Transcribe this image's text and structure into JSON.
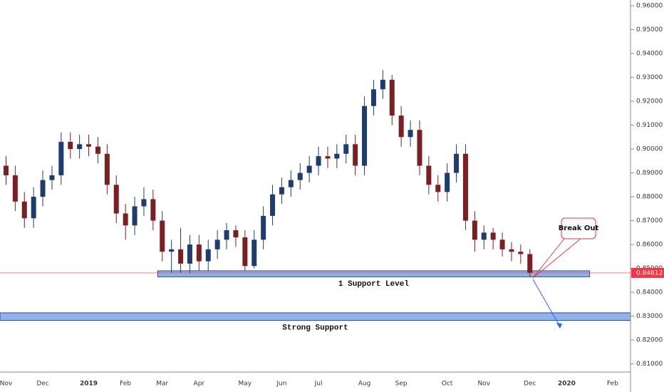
{
  "chart_data": {
    "type": "candlestick",
    "categories": [
      "Nov",
      null,
      null,
      null,
      "Dec",
      null,
      null,
      null,
      null,
      "2019",
      null,
      null,
      null,
      "Feb",
      null,
      null,
      null,
      "Mar",
      null,
      null,
      null,
      "Apr",
      null,
      null,
      null,
      null,
      "May",
      null,
      null,
      null,
      "Jun",
      null,
      null,
      null,
      "Jul",
      null,
      null,
      null,
      null,
      "Aug",
      null,
      null,
      null,
      "Sep",
      null,
      null,
      null,
      null,
      "Oct",
      null,
      null,
      null,
      "Nov",
      null,
      null,
      null,
      null,
      "Dec",
      null,
      null,
      null,
      "2020",
      null,
      null,
      null,
      null,
      "Feb"
    ],
    "open": [
      0.893,
      0.889,
      0.878,
      0.871,
      0.88,
      0.887,
      0.889,
      0.903,
      0.9,
      0.902,
      0.901,
      0.898,
      0.885,
      0.873,
      0.868,
      0.876,
      0.879,
      0.87,
      0.857,
      0.858,
      0.852,
      0.86,
      0.853,
      0.858,
      0.862,
      0.866,
      0.863,
      0.851,
      0.862,
      0.872,
      0.881,
      0.884,
      0.887,
      0.89,
      0.893,
      0.897,
      0.896,
      0.898,
      0.902,
      0.893,
      0.918,
      0.925,
      0.929,
      0.914,
      0.905,
      0.908,
      0.893,
      0.885,
      0.882,
      0.89,
      0.898,
      0.87,
      0.862,
      0.865,
      0.862,
      0.858,
      0.857,
      0.856,
      null,
      null,
      null,
      null,
      null,
      null,
      null,
      null,
      null
    ],
    "high": [
      0.897,
      0.893,
      0.882,
      0.884,
      0.891,
      0.893,
      0.907,
      0.907,
      0.906,
      0.906,
      0.905,
      0.902,
      0.889,
      0.877,
      0.88,
      0.884,
      0.883,
      0.874,
      0.862,
      0.867,
      0.864,
      0.864,
      0.862,
      0.866,
      0.869,
      0.868,
      0.866,
      0.866,
      0.876,
      0.885,
      0.888,
      0.891,
      0.894,
      0.897,
      0.901,
      0.901,
      0.902,
      0.906,
      0.906,
      0.922,
      0.929,
      0.933,
      0.931,
      0.918,
      0.912,
      0.912,
      0.897,
      0.889,
      0.894,
      0.902,
      0.902,
      0.874,
      0.868,
      0.867,
      0.865,
      0.861,
      0.86,
      0.858,
      null,
      null,
      null,
      null,
      null,
      null,
      null,
      null,
      null
    ],
    "low": [
      0.885,
      0.874,
      0.867,
      0.867,
      0.876,
      0.883,
      0.885,
      0.896,
      0.896,
      0.897,
      0.894,
      0.881,
      0.869,
      0.862,
      0.864,
      0.872,
      0.866,
      0.853,
      0.848,
      0.848,
      0.848,
      0.849,
      0.849,
      0.854,
      0.858,
      0.859,
      0.849,
      0.85,
      0.858,
      0.868,
      0.877,
      0.88,
      0.883,
      0.886,
      0.889,
      0.892,
      0.892,
      0.894,
      0.889,
      0.889,
      0.914,
      0.921,
      0.91,
      0.901,
      0.901,
      0.889,
      0.881,
      0.878,
      0.878,
      0.886,
      0.866,
      0.857,
      0.858,
      0.858,
      0.855,
      0.853,
      0.852,
      0.8465,
      null,
      null,
      null,
      null,
      null,
      null,
      null,
      null,
      null
    ],
    "close": [
      0.889,
      0.878,
      0.871,
      0.88,
      0.887,
      0.889,
      0.903,
      0.9,
      0.902,
      0.901,
      0.898,
      0.885,
      0.873,
      0.868,
      0.876,
      0.879,
      0.87,
      0.857,
      0.858,
      0.852,
      0.86,
      0.853,
      0.858,
      0.862,
      0.866,
      0.863,
      0.851,
      0.862,
      0.872,
      0.881,
      0.884,
      0.887,
      0.89,
      0.893,
      0.897,
      0.896,
      0.898,
      0.902,
      0.893,
      0.918,
      0.925,
      0.929,
      0.914,
      0.905,
      0.908,
      0.893,
      0.885,
      0.882,
      0.89,
      0.898,
      0.87,
      0.862,
      0.865,
      0.862,
      0.858,
      0.857,
      0.856,
      0.84812,
      null,
      null,
      null,
      null,
      null,
      null,
      null,
      null,
      null
    ],
    "up_color": "#1f3c6e",
    "down_color": "#7a1f24",
    "ylim": [
      0.8066,
      0.9624
    ],
    "yticks": [
      {
        "value": 0.81,
        "label": "0.81000"
      },
      {
        "value": 0.82,
        "label": "0.82000"
      },
      {
        "value": 0.83,
        "label": "0.83000"
      },
      {
        "value": 0.84,
        "label": "0.84000"
      },
      {
        "value": 0.85,
        "label": "0.85000"
      },
      {
        "value": 0.86,
        "label": "0.86000"
      },
      {
        "value": 0.87,
        "label": "0.87000"
      },
      {
        "value": 0.88,
        "label": "0.88000"
      },
      {
        "value": 0.89,
        "label": "0.89000"
      },
      {
        "value": 0.9,
        "label": "0.90000"
      },
      {
        "value": 0.91,
        "label": "0.91000"
      },
      {
        "value": 0.92,
        "label": "0.92000"
      },
      {
        "value": 0.93,
        "label": "0.93000"
      },
      {
        "value": 0.94,
        "label": "0.94000"
      },
      {
        "value": 0.95,
        "label": "0.95000"
      },
      {
        "value": 0.96,
        "label": "0.96000"
      }
    ],
    "last_price": 0.84812,
    "last_price_color": "#f23645",
    "zones": [
      {
        "label": "1 Support Level",
        "from": 0.8465,
        "to": 0.849,
        "x_range": [
          16.5,
          63.5
        ],
        "color": "#8fb3e8"
      },
      {
        "label": "Strong Support",
        "from": 0.8282,
        "to": 0.8314,
        "color": "#8fb3e8"
      }
    ],
    "annotation": "Break Out"
  }
}
